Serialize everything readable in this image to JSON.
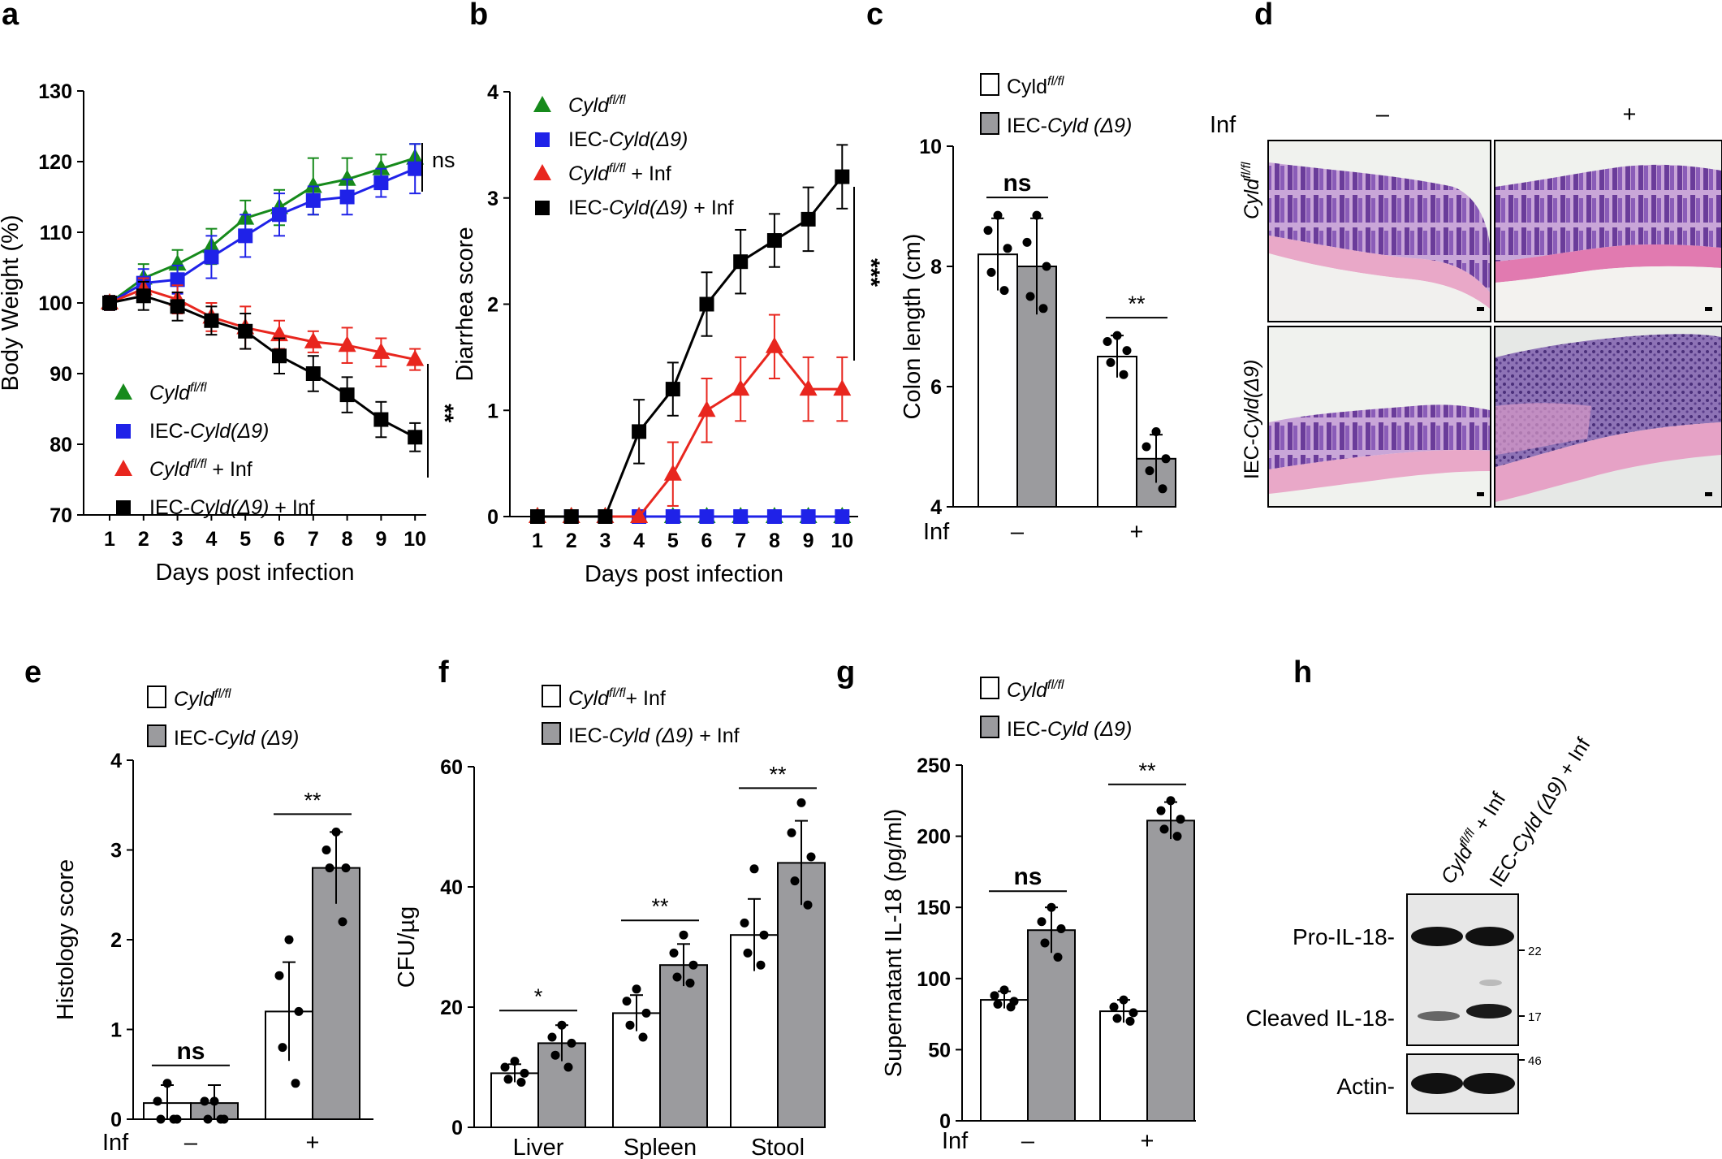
{
  "colors": {
    "wt_white": "#ffffff",
    "ko_gray": "#9b9b9e",
    "green": "#168a1b",
    "blue": "#1f22e8",
    "red": "#e8261e",
    "black": "#000000"
  },
  "chart_data": [
    {
      "panel": "a",
      "type": "line",
      "xlabel": "Days post infection",
      "ylabel": "Body Weight (%)",
      "ylim": [
        70,
        130
      ],
      "yticks": [
        "70",
        "80",
        "90",
        "100",
        "110",
        "120",
        "130"
      ],
      "categories": [
        "1",
        "2",
        "3",
        "4",
        "5",
        "6",
        "7",
        "8",
        "9",
        "10"
      ],
      "series": [
        {
          "name_italic": "Cyld",
          "name_sup": "fl/fl",
          "name_prefix": "",
          "name_suffix": "",
          "color": "#168a1b",
          "marker": "triangle",
          "values": [
            100,
            103.5,
            105.5,
            108,
            112,
            113.5,
            116.5,
            117.5,
            119,
            120.5
          ],
          "errors": [
            1,
            2,
            2,
            2.5,
            2.5,
            2.5,
            4,
            3,
            2,
            2
          ]
        },
        {
          "name_italic": "Cyld(Δ9)",
          "name_sup": "",
          "name_prefix": "IEC-",
          "name_suffix": "",
          "color": "#1f22e8",
          "marker": "square",
          "values": [
            100,
            102.8,
            103.3,
            106.5,
            109.5,
            112.5,
            114.5,
            115,
            117,
            119
          ],
          "errors": [
            1,
            2,
            2,
            3,
            3,
            3,
            2,
            2.5,
            2,
            3.5
          ]
        },
        {
          "name_italic": "Cyld",
          "name_sup": "fl/fl",
          "name_prefix": "",
          "name_suffix": " + Inf",
          "color": "#e8261e",
          "marker": "triangle",
          "values": [
            100,
            102,
            100.5,
            98,
            96.5,
            95.5,
            94.5,
            94,
            93,
            92
          ],
          "errors": [
            1,
            1.5,
            2,
            2,
            3,
            2,
            1.5,
            2.5,
            2,
            1.5
          ]
        },
        {
          "name_italic": "Cyld(Δ9)",
          "name_sup": "",
          "name_prefix": "IEC-",
          "name_suffix": " + Inf",
          "color": "#000000",
          "marker": "square",
          "values": [
            100,
            101,
            99.5,
            97.5,
            96,
            92.5,
            90,
            87,
            83.5,
            81
          ],
          "errors": [
            1,
            2,
            2,
            2,
            2.5,
            2.5,
            2.5,
            2.5,
            2.5,
            2
          ]
        }
      ],
      "annotations": [
        "ns",
        "**"
      ]
    },
    {
      "panel": "b",
      "type": "line",
      "xlabel": "Days post infection",
      "ylabel": "Diarrhea score",
      "ylim": [
        0,
        4
      ],
      "yticks": [
        "0",
        "1",
        "2",
        "3",
        "4"
      ],
      "categories": [
        "1",
        "2",
        "3",
        "4",
        "5",
        "6",
        "7",
        "8",
        "9",
        "10"
      ],
      "series": [
        {
          "name_italic": "Cyld",
          "name_sup": "fl/fl",
          "name_prefix": "",
          "name_suffix": "",
          "color": "#168a1b",
          "marker": "triangle",
          "values": [
            0,
            0,
            0,
            0,
            0,
            0,
            0,
            0,
            0,
            0
          ],
          "errors": [
            0,
            0,
            0,
            0,
            0,
            0,
            0,
            0,
            0,
            0
          ]
        },
        {
          "name_italic": "Cyld(Δ9)",
          "name_sup": "",
          "name_prefix": "IEC-",
          "name_suffix": "",
          "color": "#1f22e8",
          "marker": "square",
          "values": [
            0,
            0,
            0,
            0,
            0,
            0,
            0,
            0,
            0,
            0
          ],
          "errors": [
            0,
            0,
            0,
            0,
            0,
            0,
            0,
            0,
            0,
            0
          ]
        },
        {
          "name_italic": "Cyld",
          "name_sup": "fl/fl",
          "name_prefix": "",
          "name_suffix": " + Inf",
          "color": "#e8261e",
          "marker": "triangle",
          "values": [
            0,
            0,
            0,
            0,
            0.4,
            1.0,
            1.2,
            1.6,
            1.2,
            1.2
          ],
          "errors": [
            0,
            0,
            0,
            0,
            0.3,
            0.3,
            0.3,
            0.3,
            0.3,
            0.3
          ]
        },
        {
          "name_italic": "Cyld(Δ9)",
          "name_sup": "",
          "name_prefix": "IEC-",
          "name_suffix": " + Inf",
          "color": "#000000",
          "marker": "square",
          "values": [
            0,
            0,
            0,
            0.8,
            1.2,
            2.0,
            2.4,
            2.6,
            2.8,
            3.2
          ],
          "errors": [
            0,
            0,
            0,
            0.3,
            0.25,
            0.3,
            0.3,
            0.25,
            0.3,
            0.3
          ]
        }
      ],
      "annotations": [
        "***"
      ]
    },
    {
      "panel": "c",
      "type": "bar",
      "ylabel": "Colon length (cm)",
      "ylim": [
        4,
        10
      ],
      "yticks": [
        "4",
        "6",
        "8",
        "10"
      ],
      "group_label": "Inf",
      "categories": [
        "–",
        "+"
      ],
      "legend": [
        {
          "italic": "",
          "plain": "Cyld",
          "sup": "fl/fl",
          "prefix": "",
          "suffix": "",
          "fill": "#ffffff"
        },
        {
          "italic": "Cyld (Δ9)",
          "plain": "",
          "sup": "",
          "prefix": "IEC-",
          "suffix": "",
          "fill": "#9b9b9e"
        }
      ],
      "series": [
        {
          "name": "Cyldfl/fl",
          "values": [
            8.2,
            6.5
          ],
          "errors": [
            0.6,
            0.35
          ],
          "points": [
            [
              8.85,
              8.6,
              8.3,
              7.9,
              7.6
            ],
            [
              6.85,
              6.75,
              6.6,
              6.4,
              6.2
            ]
          ]
        },
        {
          "name": "IEC-Cyld (Δ9)",
          "values": [
            8.0,
            4.8
          ],
          "errors": [
            0.8,
            0.4
          ],
          "points": [
            [
              8.85,
              8.4,
              8.0,
              7.5,
              7.3
            ],
            [
              5.25,
              5.0,
              4.8,
              4.6,
              4.3
            ]
          ]
        }
      ],
      "significance": [
        "ns",
        "**"
      ]
    },
    {
      "panel": "e",
      "type": "bar",
      "ylabel": "Histology score",
      "ylim": [
        0,
        4
      ],
      "yticks": [
        "0",
        "1",
        "2",
        "3",
        "4"
      ],
      "group_label": "Inf",
      "categories": [
        "–",
        "+"
      ],
      "legend": [
        {
          "italic": "Cyld",
          "plain": "",
          "sup": "fl/fl",
          "prefix": "",
          "suffix": "",
          "fill": "#ffffff"
        },
        {
          "italic": "Cyld (Δ9)",
          "plain": "",
          "sup": "",
          "prefix": "IEC-",
          "suffix": "",
          "fill": "#9b9b9e"
        }
      ],
      "series": [
        {
          "name": "Cyldfl/fl",
          "values": [
            0.18,
            1.2
          ],
          "errors": [
            0.2,
            0.55
          ],
          "points": [
            [
              0.4,
              0.2,
              0.0,
              0.0,
              0.0
            ],
            [
              2.0,
              1.6,
              1.2,
              0.8,
              0.4
            ]
          ]
        },
        {
          "name": "IEC-Cyld (Δ9)",
          "values": [
            0.18,
            2.8
          ],
          "errors": [
            0.2,
            0.4
          ],
          "points": [
            [
              0.2,
              0.2,
              0.0,
              0.0,
              0.0
            ],
            [
              3.2,
              3.0,
              2.8,
              2.8,
              2.2
            ]
          ]
        }
      ],
      "significance": [
        "ns",
        "**"
      ]
    },
    {
      "panel": "f",
      "type": "bar",
      "ylabel": "CFU/µg",
      "ylim": [
        0,
        60
      ],
      "yticks": [
        "0",
        "20",
        "40",
        "60"
      ],
      "categories": [
        "Liver",
        "Spleen",
        "Stool"
      ],
      "legend": [
        {
          "italic": "Cyld",
          "plain": "",
          "sup": "fl/fl",
          "prefix": "",
          "suffix": "+ Inf",
          "fill": "#ffffff"
        },
        {
          "italic": "Cyld (Δ9)",
          "plain": "",
          "sup": "",
          "prefix": "IEC-",
          "suffix": " + Inf",
          "fill": "#9b9b9e"
        }
      ],
      "series": [
        {
          "name": "Cyldfl/fl + Inf",
          "values": [
            9,
            19,
            32
          ],
          "errors": [
            1.5,
            3,
            6
          ],
          "points": [
            [
              11,
              10,
              9,
              8,
              7.5
            ],
            [
              23,
              21,
              19,
              17,
              15
            ],
            [
              43,
              34,
              32,
              29,
              27
            ]
          ]
        },
        {
          "name": "IEC-Cyld (Δ9) + Inf",
          "values": [
            14,
            27,
            44
          ],
          "errors": [
            3,
            3.5,
            7
          ],
          "points": [
            [
              17,
              15,
              14,
              12,
              10
            ],
            [
              32,
              29,
              27,
              25,
              24
            ],
            [
              54,
              49,
              45,
              41,
              37
            ]
          ]
        }
      ],
      "significance": [
        "*",
        "**",
        "**"
      ]
    },
    {
      "panel": "g",
      "type": "bar",
      "ylabel": "Supernatant IL-18 (pg/ml)",
      "ylim": [
        0,
        250
      ],
      "yticks": [
        "0",
        "50",
        "100",
        "150",
        "200",
        "250"
      ],
      "group_label": "Inf",
      "categories": [
        "–",
        "+"
      ],
      "legend": [
        {
          "italic": "Cyld",
          "plain": "",
          "sup": "fl/fl",
          "prefix": "",
          "suffix": "",
          "fill": "#ffffff"
        },
        {
          "italic": "Cyld (Δ9)",
          "plain": "",
          "sup": "",
          "prefix": "IEC-",
          "suffix": "",
          "fill": "#9b9b9e"
        }
      ],
      "series": [
        {
          "name": "Cyldfl/fl",
          "values": [
            85,
            77
          ],
          "errors": [
            6,
            8
          ],
          "points": [
            [
              92,
              88,
              84,
              82,
              80
            ],
            [
              85,
              80,
              76,
              72,
              70
            ]
          ]
        },
        {
          "name": "IEC-Cyld (Δ9)",
          "values": [
            134,
            211
          ],
          "errors": [
            16,
            13
          ],
          "points": [
            [
              150,
              140,
              135,
              125,
              115
            ],
            [
              225,
              218,
              212,
              205,
              200
            ]
          ]
        }
      ],
      "significance": [
        "ns",
        "**"
      ]
    }
  ],
  "panels": {
    "a": "a",
    "b": "b",
    "c": "c",
    "d": "d",
    "e": "e",
    "f": "f",
    "g": "g",
    "h": "h"
  },
  "histology": {
    "inf_label": "Inf",
    "col_minus": "–",
    "col_plus": "+",
    "row1_italic": "Cyld",
    "row1_sup": "fl/fl",
    "row2_prefix": "IEC-",
    "row2_italic": "Cyld(Δ9)"
  },
  "blot": {
    "lane1_italic": "Cyld",
    "lane1_sup": "fl/fl",
    "lane1_suffix": " + Inf",
    "lane2_prefix": "IEC-",
    "lane2_italic": "Cyld (Δ9)",
    "lane2_suffix": " + Inf",
    "rows": [
      "Pro-IL-18-",
      "Cleaved IL-18-",
      "Actin-"
    ],
    "mw": [
      "22",
      "17",
      "46"
    ]
  }
}
